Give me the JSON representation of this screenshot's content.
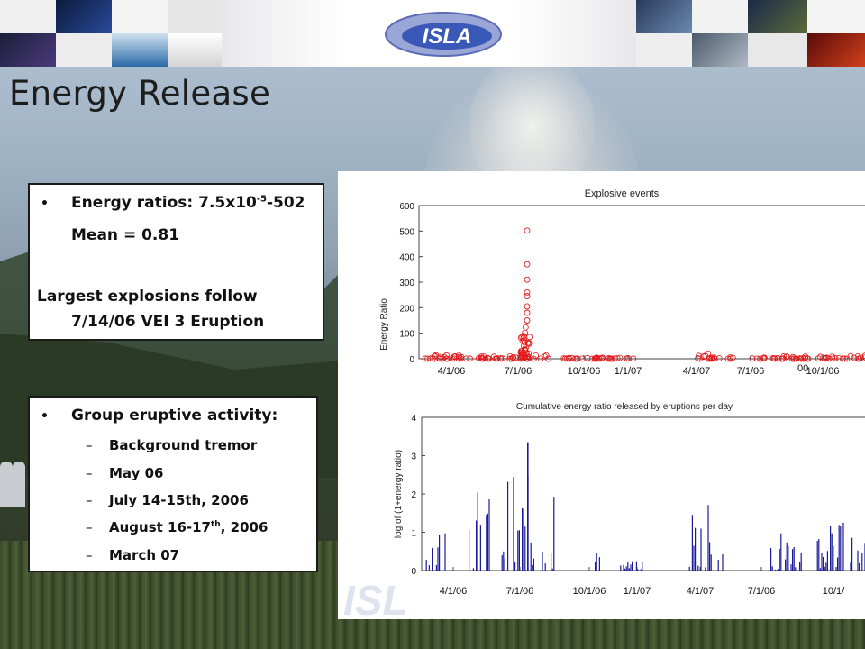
{
  "slide": {
    "title": "Energy Release",
    "box1": {
      "line1_prefix": "Energy ratios: 7.5x10",
      "line1_sup": "-5",
      "line1_suffix": "-502",
      "mean": "Mean = 0.81",
      "largest_1": "Largest explosions follow",
      "largest_2": "7/14/06 VEI 3 Eruption"
    },
    "box2": {
      "heading": "Group eruptive activity:",
      "items": [
        {
          "text": "Background tremor"
        },
        {
          "text": "May 06"
        },
        {
          "text": "July 14-15th, 2006"
        },
        {
          "pre": "August 16-17",
          "sup": "th",
          "post": ", 2006"
        },
        {
          "text": "March 07"
        }
      ]
    },
    "banner": {
      "logo_text": "ISLA",
      "watermark": "ISL"
    }
  },
  "chart_data": [
    {
      "type": "scatter",
      "title": "Explosive events",
      "ylabel": "Energy Ratio",
      "xlabel": "",
      "ylim": [
        0,
        600
      ],
      "yticks": [
        "0",
        "100",
        "200",
        "300",
        "400",
        "500",
        "600"
      ],
      "xticks": [
        "4/1/06",
        "7/1/06",
        "10/1/06",
        "1/1/07",
        "4/1/07",
        "7/1/06",
        "10/1/06"
      ],
      "partial_label": "00",
      "color": "#e41a1c",
      "highlights": [
        {
          "x": "7/14/06",
          "y": 502
        },
        {
          "x": "7/14/06",
          "y": 370
        },
        {
          "x": "7/14/06",
          "y": 310
        },
        {
          "x": "7/14/06",
          "y": 260
        },
        {
          "x": "7/14/06",
          "y": 245
        },
        {
          "x": "7/14/06",
          "y": 205
        },
        {
          "x": "7/14/06",
          "y": 180
        },
        {
          "x": "7/14/06",
          "y": 150
        }
      ]
    },
    {
      "type": "bar",
      "title": "Cumulative energy ratio released by eruptions per day",
      "ylabel": "log of (1+energy ratio)",
      "xlabel": "",
      "ylim": [
        0,
        4
      ],
      "yticks": [
        "0",
        "1",
        "2",
        "3",
        "4"
      ],
      "xticks": [
        "4/1/06",
        "7/1/06",
        "10/1/06",
        "1/1/07",
        "4/1/07",
        "7/1/06",
        "10/1/"
      ],
      "color": "#1a1a9c",
      "peak": 3.35
    }
  ]
}
